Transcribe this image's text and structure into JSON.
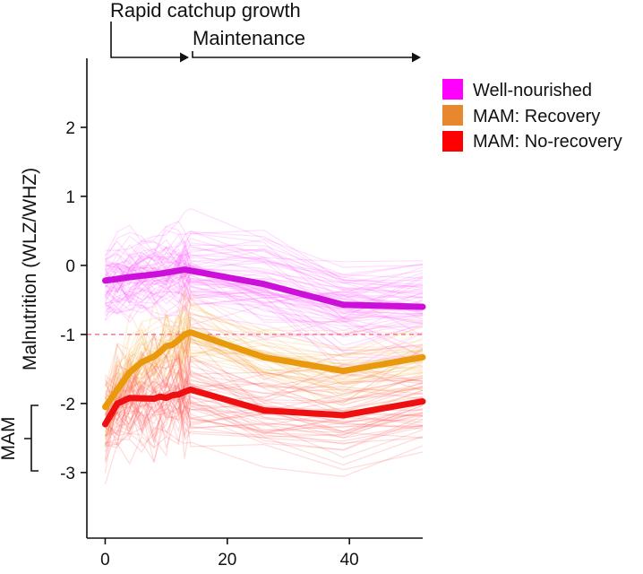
{
  "chart_data": {
    "type": "line",
    "title": "",
    "xlabel": "",
    "ylabel": "Malnutrition (WLZ/WHZ)",
    "xlim": [
      -3,
      52
    ],
    "ylim": [
      -3.95,
      3.0
    ],
    "x_ticks": [
      "0",
      "20",
      "40"
    ],
    "y_ticks": [
      "2",
      "1",
      "0",
      "-1",
      "-2",
      "-3"
    ],
    "threshold": {
      "value": -1,
      "style": "dashed",
      "color": "#f07a8c"
    },
    "mam_bracket": {
      "label": "MAM",
      "range": [
        -3,
        -2
      ]
    },
    "phases": [
      {
        "label": "Rapid catchup growth",
        "x_start": 0,
        "x_end": 13
      },
      {
        "label": "Maintenance",
        "x_start": 14,
        "x_end": 52
      }
    ],
    "legend": {
      "placement": "top-right"
    },
    "series": [
      {
        "name": "Well-nourished",
        "color": "#cc10d9",
        "trace_color": "#ff66ff",
        "legend_color": "#ff00ff",
        "x": [
          0,
          4,
          9,
          13,
          26,
          39,
          52
        ],
        "y": [
          -0.22,
          -0.17,
          -0.12,
          -0.06,
          -0.27,
          -0.57,
          -0.6
        ]
      },
      {
        "name": "MAM: Recovery",
        "color": "#e8990c",
        "trace_color": "#f6b04e",
        "legend_color": "#e8882e",
        "x": [
          0,
          2,
          4,
          6,
          8,
          9,
          10,
          11,
          12,
          13,
          14,
          26,
          39,
          52
        ],
        "y": [
          -2.05,
          -1.8,
          -1.55,
          -1.4,
          -1.32,
          -1.25,
          -1.17,
          -1.15,
          -1.08,
          -1.0,
          -0.97,
          -1.33,
          -1.53,
          -1.33
        ]
      },
      {
        "name": "MAM: No-recovery",
        "color": "#ee1010",
        "trace_color": "#ff5a5a",
        "legend_color": "#ff0000",
        "x": [
          0,
          2,
          4,
          8,
          9,
          10,
          11,
          12,
          13,
          14,
          26,
          39,
          52
        ],
        "y": [
          -2.3,
          -2.0,
          -1.92,
          -1.93,
          -1.9,
          -1.92,
          -1.88,
          -1.87,
          -1.83,
          -1.8,
          -2.1,
          -2.17,
          -1.97
        ]
      }
    ]
  }
}
